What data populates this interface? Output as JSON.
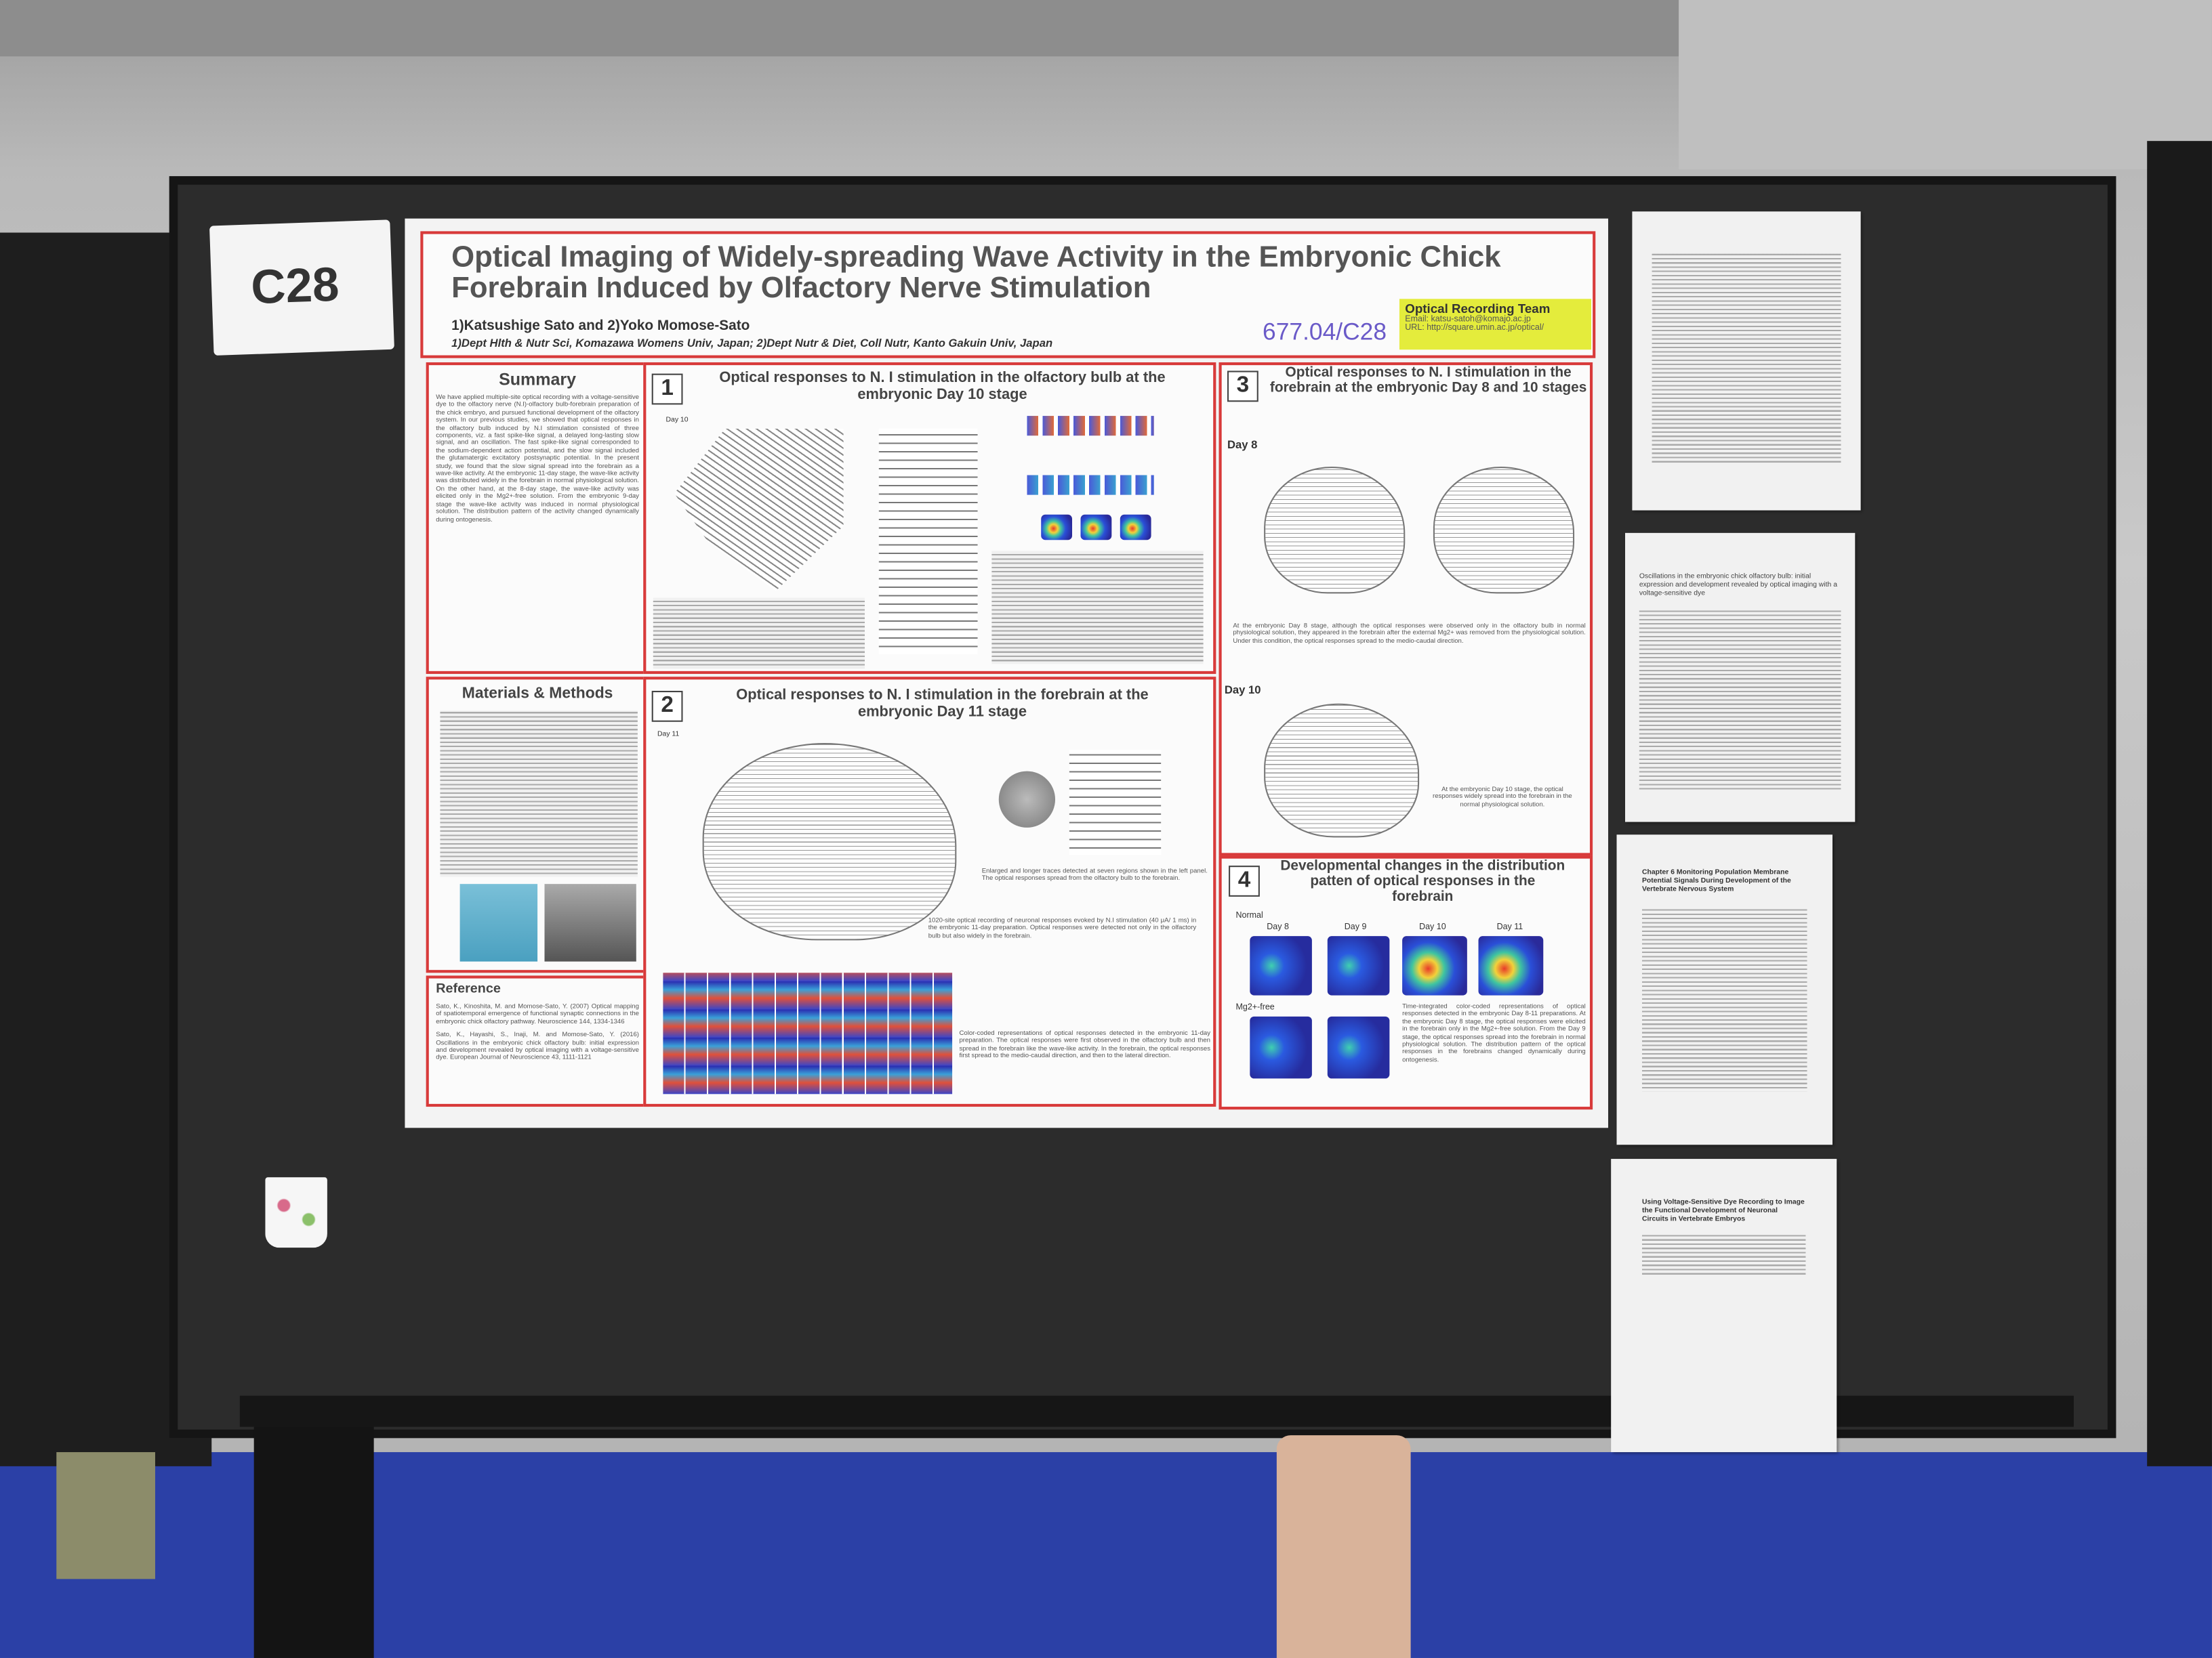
{
  "label": "C28",
  "poster": {
    "title": "Optical Imaging of Widely-spreading Wave Activity in the Embryonic Chick Forebrain Induced by Olfactory Nerve Stimulation",
    "authors": "1)Katsushige Sato and 2)Yoko Momose-Sato",
    "affiliations": "1)Dept Hlth & Nutr Sci, Komazawa Womens Univ, Japan; 2)Dept Nutr & Diet, Coll Nutr, Kanto Gakuin Univ, Japan",
    "number": "677.04/C28",
    "team": {
      "name": "Optical Recording Team",
      "email": "Email: katsu-satoh@komajo.ac.jp",
      "url": "URL: http://square.umin.ac.jp/optical/"
    },
    "summary": {
      "heading": "Summary",
      "text": "We have applied multiple-site optical recording with a voltage-sensitive dye to the olfactory nerve (N.I)-olfactory bulb-forebrain preparation of the chick embryo, and pursued functional development of the olfactory system. In our previous studies, we showed that optical responses in the olfactory bulb induced by N.I stimulation consisted of three components, viz. a fast spike-like signal, a delayed long-lasting slow signal, and an oscillation. The fast spike-like signal corresponded to the sodium-dependent action potential, and the slow signal included the glutamatergic excitatory postsynaptic potential. In the present study, we found that the slow signal spread into the forebrain as a wave-like activity. At the embryonic 11-day stage, the wave-like activity was distributed widely in the forebrain in normal physiological solution. On the other hand, at the 8-day stage, the wave-like activity was elicited only in the Mg2+-free solution. From the embryonic 9-day stage the wave-like activity was induced in normal physiological solution. The distribution pattern of the activity changed dynamically during ontogenesis."
    },
    "methods": {
      "heading": "Materials & Methods"
    },
    "reference": {
      "heading": "Reference",
      "items": [
        "Sato, K., Kinoshita, M. and Momose-Sato, Y. (2007) Optical mapping of spatiotemporal emergence of functional synaptic connections in the embryonic chick olfactory pathway. Neuroscience 144, 1334-1346",
        "Sato, K., Hayashi, S., Inaji, M. and Momose-Sato, Y. (2016) Oscillations in the embryonic chick olfactory bulb: initial expression and development revealed by optical imaging with a voltage-sensitive dye. European Journal of Neuroscience 43, 1111-1121"
      ]
    },
    "panel1": {
      "number": "1",
      "title": "Optical responses to N. I stimulation in the olfactory bulb at the embryonic Day 10 stage",
      "day": "Day 10"
    },
    "panel2": {
      "number": "2",
      "title": "Optical responses to N. I stimulation in the forebrain at the embryonic Day 11 stage",
      "day": "Day 11",
      "caption1": "Enlarged and longer traces detected at seven regions shown in the left panel. The optical responses spread from the olfactory bulb to the forebrain.",
      "caption2": "1020-site optical recording of neuronal responses evoked by N.I stimulation (40 μA/ 1 ms) in the embryonic 11-day preparation. Optical responses were detected not only in the olfactory bulb but also widely in the forebrain.",
      "caption3": "Color-coded representations of optical responses detected in the embryonic 11-day preparation. The optical responses were first observed in the olfactory bulb and then spread in the forebrain like the wave-like activity. In the forebrain, the optical responses first spread to the medio-caudal direction, and then to the lateral direction."
    },
    "panel3": {
      "number": "3",
      "title": "Optical responses to N. I stimulation in the forebrain at the embryonic Day 8 and 10 stages",
      "day8": "Day 8",
      "day10": "Day 10",
      "caption8": "At the embryonic Day 8 stage, although the optical responses were observed only in the olfactory bulb in normal physiological solution, they appeared in the forebrain after the external Mg2+ was removed from the physiological solution. Under this condition, the optical responses spread to the medio-caudal direction.",
      "caption10": "At the embryonic Day 10 stage, the optical responses widely spread into the forebrain in the normal physiological solution."
    },
    "panel4": {
      "number": "4",
      "title": "Developmental changes in the distribution patten of optical responses in the forebrain",
      "rows": [
        "Normal",
        "Mg2+-free"
      ],
      "columns": [
        "Day 8",
        "Day 9",
        "Day 10",
        "Day 11"
      ],
      "caption": "Time-integrated color-coded representations of optical responses detected in the embryonic Day 8-11 preparations. At the embryonic Day 8 stage, the optical responses were elicited in the forebrain only in the Mg2+-free solution. From the Day 9 stage, the optical responses spread into the forebrain in normal physiological solution. The distribution pattern of the optical responses in the forebrains changed dynamically during ontogenesis."
    }
  },
  "handouts": [
    "Oscillations in the embryonic chick olfactory bulb: initial expression and development revealed by optical imaging with a voltage-sensitive dye",
    "Chapter 6 Monitoring Population Membrane Potential Signals During Development of the Vertebrate Nervous System",
    "Using Voltage-Sensitive Dye Recording to Image the Functional Development of Neuronal Circuits in Vertebrate Embryos"
  ]
}
